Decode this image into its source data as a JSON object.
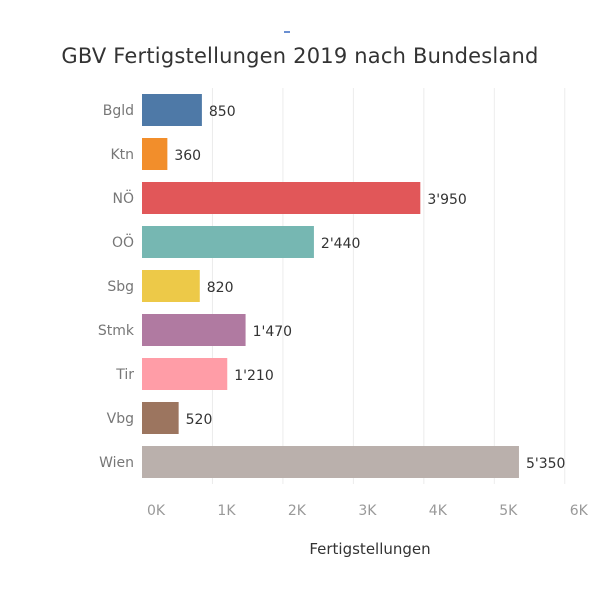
{
  "chart_data": {
    "type": "bar",
    "orientation": "horizontal",
    "title": "GBV Fertigstellungen 2019 nach Bundesland",
    "xlabel": "Fertigstellungen",
    "ylabel": "",
    "xlim": [
      0,
      6500
    ],
    "grid": true,
    "categories": [
      "Bgld",
      "Ktn",
      "NÖ",
      "OÖ",
      "Sbg",
      "Stmk",
      "Tir",
      "Vbg",
      "Wien"
    ],
    "values": [
      850,
      360,
      3950,
      2440,
      820,
      1470,
      1210,
      520,
      5350
    ],
    "value_labels": [
      "850",
      "360",
      "3'950",
      "2'440",
      "820",
      "1'470",
      "1'210",
      "520",
      "5'350"
    ],
    "colors": [
      "#4e79a7",
      "#f28e2b",
      "#e15759",
      "#76b7b2",
      "#edc948",
      "#b07aa1",
      "#ff9da7",
      "#9c755f",
      "#bab0ac"
    ],
    "x_ticks": [
      {
        "value": 0,
        "label": "0K"
      },
      {
        "value": 1000,
        "label": "1K"
      },
      {
        "value": 2000,
        "label": "2K"
      },
      {
        "value": 3000,
        "label": "3K"
      },
      {
        "value": 4000,
        "label": "4K"
      },
      {
        "value": 5000,
        "label": "5K"
      },
      {
        "value": 6000,
        "label": "6K"
      }
    ]
  }
}
